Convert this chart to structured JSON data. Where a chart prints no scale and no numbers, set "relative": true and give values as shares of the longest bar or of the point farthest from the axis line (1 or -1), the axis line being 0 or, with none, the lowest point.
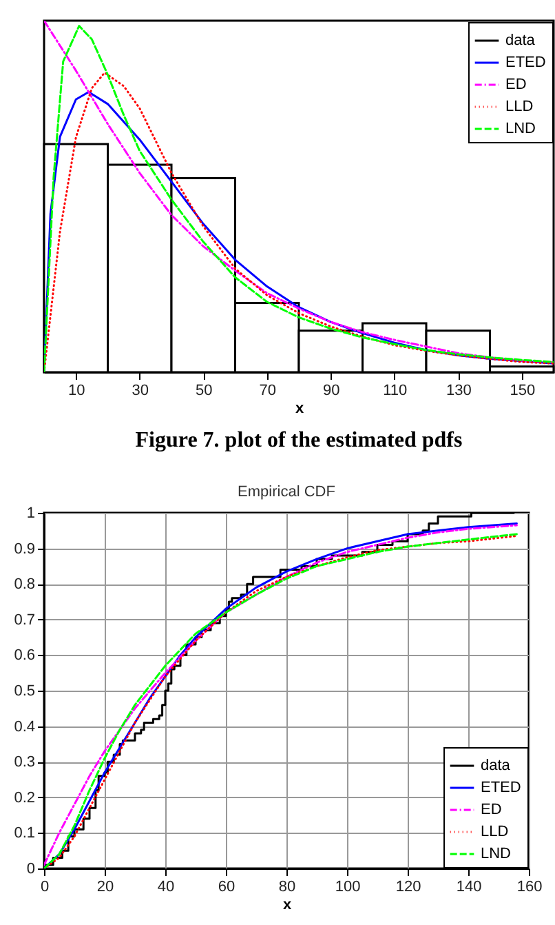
{
  "chart_data": [
    {
      "type": "histogram",
      "relative": true,
      "xlabel": "x",
      "xlim": [
        0,
        160
      ],
      "xticks": [
        10,
        30,
        50,
        70,
        90,
        110,
        130,
        150
      ],
      "tick_labels": "x",
      "legend": "top right",
      "annotations": [
        "Figure 7. plot of the estimated pdfs"
      ],
      "series": [
        {
          "name": "data",
          "color": "#000000",
          "bins": [
            0,
            20,
            40,
            60,
            80,
            100,
            120,
            140,
            160
          ],
          "values": [
            0.649,
            0.59,
            0.552,
            0.197,
            0.118,
            0.139,
            0.118,
            0.016
          ]
        },
        {
          "name": "ETED",
          "type": "line",
          "color": "#0000ff",
          "line_style": "solid",
          "x": [
            0,
            2,
            5,
            10,
            14,
            20,
            30,
            40,
            50,
            60,
            70,
            80,
            90,
            100,
            110,
            120,
            130,
            140,
            150,
            160
          ],
          "values": [
            0,
            0.45,
            0.67,
            0.776,
            0.797,
            0.763,
            0.662,
            0.542,
            0.422,
            0.32,
            0.244,
            0.185,
            0.143,
            0.111,
            0.084,
            0.063,
            0.048,
            0.038,
            0.032,
            0.025
          ]
        },
        {
          "name": "ED",
          "type": "line",
          "color": "#ff00ff",
          "line_style": "dashdot",
          "x": [
            0,
            10,
            20,
            30,
            40,
            50,
            60,
            70,
            80,
            90,
            100,
            110,
            120,
            130,
            140,
            150,
            160
          ],
          "values": [
            1,
            0.858,
            0.706,
            0.567,
            0.447,
            0.358,
            0.289,
            0.225,
            0.181,
            0.143,
            0.114,
            0.092,
            0.073,
            0.054,
            0.042,
            0.033,
            0.028
          ]
        },
        {
          "name": "LLD",
          "type": "line",
          "color": "#ff0000",
          "line_style": "dotted",
          "x": [
            0,
            5,
            10,
            15,
            19,
            25,
            30,
            40,
            50,
            60,
            70,
            80,
            90,
            100,
            110,
            120,
            130,
            140,
            150,
            160
          ],
          "values": [
            0,
            0.4,
            0.668,
            0.808,
            0.852,
            0.814,
            0.751,
            0.567,
            0.415,
            0.295,
            0.219,
            0.168,
            0.13,
            0.101,
            0.077,
            0.061,
            0.048,
            0.038,
            0.029,
            0.025
          ]
        },
        {
          "name": "LND",
          "type": "line",
          "color": "#00ff00",
          "line_style": "dashed",
          "x": [
            0,
            3,
            6,
            11,
            15,
            20,
            25,
            30,
            40,
            50,
            60,
            70,
            80,
            90,
            100,
            110,
            120,
            130,
            140,
            150,
            160
          ],
          "values": [
            0,
            0.554,
            0.884,
            0.985,
            0.947,
            0.846,
            0.732,
            0.63,
            0.491,
            0.371,
            0.27,
            0.2,
            0.156,
            0.124,
            0.099,
            0.08,
            0.063,
            0.051,
            0.042,
            0.035,
            0.029
          ]
        }
      ]
    },
    {
      "type": "line",
      "title": "Empirical CDF",
      "xlabel": "x",
      "xlim": [
        0,
        160
      ],
      "xticks": [
        0,
        20,
        40,
        60,
        80,
        100,
        120,
        140,
        160
      ],
      "ylim": [
        0,
        1
      ],
      "yticks": [
        0,
        0.1,
        0.2,
        0.3,
        0.4,
        0.5,
        0.6,
        0.7,
        0.8,
        0.9,
        1
      ],
      "grid": true,
      "legend": "bottom right",
      "series": [
        {
          "name": "data",
          "type": "step",
          "color": "#000000",
          "line_style": "solid",
          "x": [
            0,
            3,
            6,
            8,
            10,
            13,
            15,
            17,
            18,
            20,
            21,
            23,
            25,
            26,
            29,
            30,
            32,
            33,
            36,
            38,
            39,
            40,
            41,
            42,
            43,
            45,
            47,
            50,
            52,
            55,
            58,
            60,
            61,
            62,
            65,
            67,
            69,
            75,
            78,
            85,
            90,
            95,
            105,
            110,
            115,
            120,
            125,
            127,
            130,
            140,
            141,
            155
          ],
          "values": [
            0.01,
            0.03,
            0.05,
            0.09,
            0.11,
            0.14,
            0.17,
            0.22,
            0.26,
            0.27,
            0.3,
            0.32,
            0.35,
            0.36,
            0.36,
            0.38,
            0.39,
            0.41,
            0.42,
            0.43,
            0.46,
            0.5,
            0.52,
            0.56,
            0.57,
            0.6,
            0.63,
            0.65,
            0.67,
            0.69,
            0.71,
            0.73,
            0.75,
            0.76,
            0.77,
            0.8,
            0.82,
            0.82,
            0.84,
            0.85,
            0.87,
            0.88,
            0.89,
            0.91,
            0.92,
            0.94,
            0.95,
            0.97,
            0.99,
            0.99,
            1,
            1
          ]
        },
        {
          "name": "ETED",
          "color": "#0000ff",
          "line_style": "solid",
          "x": [
            0,
            5,
            10,
            15,
            20,
            25,
            30,
            35,
            40,
            45,
            50,
            60,
            70,
            80,
            90,
            100,
            110,
            120,
            130,
            140,
            156
          ],
          "values": [
            0,
            0.04,
            0.11,
            0.19,
            0.27,
            0.34,
            0.41,
            0.48,
            0.54,
            0.6,
            0.65,
            0.73,
            0.79,
            0.835,
            0.87,
            0.9,
            0.92,
            0.94,
            0.95,
            0.96,
            0.97
          ]
        },
        {
          "name": "ED",
          "color": "#ff00ff",
          "line_style": "dashdot",
          "x": [
            0,
            5,
            10,
            15,
            20,
            25,
            30,
            40,
            50,
            60,
            70,
            80,
            90,
            100,
            110,
            120,
            130,
            140,
            156
          ],
          "values": [
            0.01,
            0.1,
            0.18,
            0.26,
            0.33,
            0.39,
            0.45,
            0.55,
            0.64,
            0.72,
            0.77,
            0.82,
            0.86,
            0.89,
            0.91,
            0.93,
            0.945,
            0.955,
            0.965
          ]
        },
        {
          "name": "LLD",
          "color": "#ff0000",
          "line_style": "dotted",
          "x": [
            0,
            5,
            10,
            15,
            20,
            25,
            30,
            40,
            50,
            60,
            70,
            80,
            90,
            100,
            110,
            120,
            130,
            140,
            156
          ],
          "values": [
            0,
            0.03,
            0.09,
            0.17,
            0.25,
            0.33,
            0.41,
            0.54,
            0.64,
            0.72,
            0.78,
            0.82,
            0.85,
            0.875,
            0.895,
            0.905,
            0.915,
            0.92,
            0.935
          ]
        },
        {
          "name": "LND",
          "color": "#00ff00",
          "line_style": "dashed",
          "x": [
            0,
            5,
            10,
            15,
            20,
            25,
            30,
            40,
            50,
            60,
            70,
            80,
            90,
            100,
            110,
            120,
            130,
            140,
            156
          ],
          "values": [
            0,
            0.04,
            0.12,
            0.22,
            0.31,
            0.39,
            0.46,
            0.57,
            0.66,
            0.72,
            0.77,
            0.815,
            0.85,
            0.87,
            0.89,
            0.905,
            0.915,
            0.925,
            0.94
          ]
        }
      ]
    }
  ]
}
